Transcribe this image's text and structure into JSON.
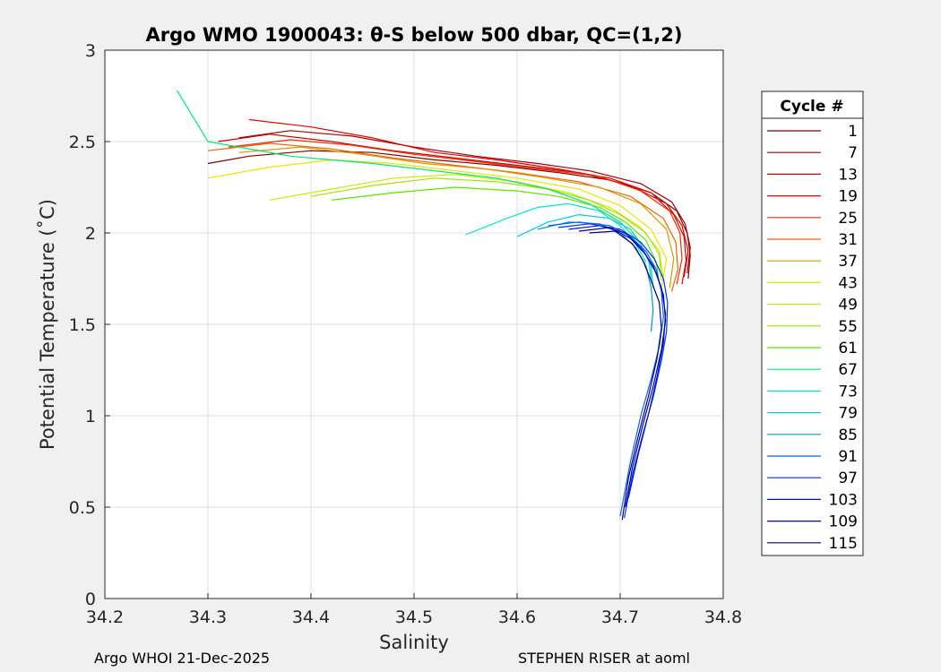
{
  "chart_data": {
    "type": "line",
    "title": "Argo WMO 1900043: θ-S below 500 dbar,  QC=(1,2)",
    "xlabel": "Salinity",
    "ylabel": "Potential Temperature (˚C)",
    "xlim": [
      34.2,
      34.8
    ],
    "ylim": [
      0,
      3
    ],
    "x_ticks": [
      34.2,
      34.3,
      34.4,
      34.5,
      34.6,
      34.7,
      34.8
    ],
    "x_tick_labels": [
      "34.2",
      "34.3",
      "34.4",
      "34.5",
      "34.6",
      "34.7",
      "34.8"
    ],
    "y_ticks": [
      0,
      0.5,
      1,
      1.5,
      2,
      2.5,
      3
    ],
    "y_tick_labels": [
      "0",
      "0.5",
      "1",
      "1.5",
      "2",
      "2.5",
      "3"
    ],
    "grid": true,
    "legend": {
      "title": "Cycle #",
      "placement": "right-outside",
      "entries": [
        {
          "label": "1",
          "color": "#800000"
        },
        {
          "label": "7",
          "color": "#a50000"
        },
        {
          "label": "13",
          "color": "#c80000"
        },
        {
          "label": "19",
          "color": "#e60000"
        },
        {
          "label": "25",
          "color": "#f03000"
        },
        {
          "label": "31",
          "color": "#f06400"
        },
        {
          "label": "37",
          "color": "#d49a00"
        },
        {
          "label": "43",
          "color": "#e6e600"
        },
        {
          "label": "49",
          "color": "#d2e600"
        },
        {
          "label": "55",
          "color": "#a0e600"
        },
        {
          "label": "61",
          "color": "#5ae600"
        },
        {
          "label": "67",
          "color": "#00e678"
        },
        {
          "label": "73",
          "color": "#00e6c8"
        },
        {
          "label": "79",
          "color": "#00c8f0"
        },
        {
          "label": "85",
          "color": "#0096c8"
        },
        {
          "label": "91",
          "color": "#0064ff"
        },
        {
          "label": "97",
          "color": "#0032e6"
        },
        {
          "label": "103",
          "color": "#0014c8"
        },
        {
          "label": "109",
          "color": "#0000aa"
        },
        {
          "label": "115",
          "color": "#000080"
        }
      ]
    },
    "series": [
      {
        "name": "1",
        "color": "#800000",
        "x": [
          34.3,
          34.34,
          34.4,
          34.46,
          34.52,
          34.58,
          34.64,
          34.69,
          34.73,
          34.755,
          34.765,
          34.768,
          34.766
        ],
        "y": [
          2.38,
          2.42,
          2.45,
          2.44,
          2.4,
          2.37,
          2.33,
          2.29,
          2.22,
          2.12,
          2.0,
          1.88,
          1.75
        ]
      },
      {
        "name": "7",
        "color": "#a50000",
        "x": [
          34.33,
          34.38,
          34.44,
          34.5,
          34.56,
          34.62,
          34.67,
          34.72,
          34.75,
          34.763,
          34.768,
          34.765
        ],
        "y": [
          2.52,
          2.56,
          2.53,
          2.47,
          2.42,
          2.38,
          2.34,
          2.27,
          2.17,
          2.05,
          1.92,
          1.78
        ]
      },
      {
        "name": "13",
        "color": "#c80000",
        "x": [
          34.31,
          34.36,
          34.42,
          34.48,
          34.54,
          34.6,
          34.66,
          34.71,
          34.745,
          34.76,
          34.766,
          34.762
        ],
        "y": [
          2.5,
          2.54,
          2.5,
          2.45,
          2.41,
          2.37,
          2.33,
          2.26,
          2.16,
          2.04,
          1.9,
          1.76
        ]
      },
      {
        "name": "19",
        "color": "#e60000",
        "x": [
          34.34,
          34.4,
          34.46,
          34.52,
          34.58,
          34.64,
          34.69,
          34.73,
          34.752,
          34.762,
          34.764,
          34.76
        ],
        "y": [
          2.62,
          2.58,
          2.52,
          2.44,
          2.4,
          2.35,
          2.3,
          2.22,
          2.1,
          1.98,
          1.85,
          1.72
        ]
      },
      {
        "name": "25",
        "color": "#f03000",
        "x": [
          34.32,
          34.38,
          34.44,
          34.5,
          34.56,
          34.62,
          34.68,
          34.72,
          34.748,
          34.758,
          34.76,
          34.755
        ],
        "y": [
          2.47,
          2.51,
          2.48,
          2.43,
          2.39,
          2.35,
          2.31,
          2.23,
          2.12,
          2.0,
          1.86,
          1.72
        ]
      },
      {
        "name": "31",
        "color": "#f06400",
        "x": [
          34.3,
          34.36,
          34.42,
          34.48,
          34.54,
          34.6,
          34.66,
          34.71,
          34.742,
          34.754,
          34.756,
          34.75
        ],
        "y": [
          2.45,
          2.49,
          2.46,
          2.41,
          2.37,
          2.33,
          2.28,
          2.2,
          2.08,
          1.95,
          1.8,
          1.68
        ]
      },
      {
        "name": "37",
        "color": "#d49a00",
        "x": [
          34.33,
          34.39,
          34.45,
          34.51,
          34.57,
          34.63,
          34.68,
          34.72,
          34.745,
          34.752,
          34.748
        ],
        "y": [
          2.44,
          2.47,
          2.43,
          2.38,
          2.35,
          2.3,
          2.25,
          2.16,
          2.02,
          1.86,
          1.7
        ]
      },
      {
        "name": "43",
        "color": "#e6e600",
        "x": [
          34.3,
          34.36,
          34.42,
          34.48,
          34.54,
          34.6,
          34.66,
          34.7,
          34.73,
          34.745,
          34.74
        ],
        "y": [
          2.3,
          2.36,
          2.4,
          2.38,
          2.34,
          2.3,
          2.24,
          2.15,
          2.02,
          1.86,
          1.7
        ]
      },
      {
        "name": "49",
        "color": "#d2e600",
        "x": [
          34.36,
          34.42,
          34.48,
          34.54,
          34.6,
          34.65,
          34.69,
          34.72,
          34.738,
          34.742
        ],
        "y": [
          2.18,
          2.24,
          2.3,
          2.32,
          2.28,
          2.22,
          2.14,
          2.03,
          1.9,
          1.74
        ]
      },
      {
        "name": "55",
        "color": "#a0e600",
        "x": [
          34.4,
          34.46,
          34.52,
          34.58,
          34.63,
          34.67,
          34.7,
          34.725,
          34.738,
          34.74
        ],
        "y": [
          2.2,
          2.26,
          2.3,
          2.28,
          2.24,
          2.18,
          2.1,
          2.0,
          1.88,
          1.74
        ]
      },
      {
        "name": "61",
        "color": "#5ae600",
        "x": [
          34.42,
          34.48,
          34.54,
          34.6,
          34.64,
          34.68,
          34.705,
          34.725,
          34.735,
          34.738
        ],
        "y": [
          2.18,
          2.22,
          2.25,
          2.23,
          2.2,
          2.14,
          2.06,
          1.96,
          1.84,
          1.72
        ]
      },
      {
        "name": "67",
        "color": "#00e678",
        "x": [
          34.27,
          34.3,
          34.38,
          34.46,
          34.52,
          34.58,
          34.63,
          34.67,
          34.7,
          34.72,
          34.73,
          34.732
        ],
        "y": [
          2.78,
          2.5,
          2.42,
          2.38,
          2.34,
          2.3,
          2.24,
          2.16,
          2.06,
          1.94,
          1.82,
          1.7
        ]
      },
      {
        "name": "73",
        "color": "#00e6c8",
        "x": [
          34.55,
          34.59,
          34.62,
          34.65,
          34.68,
          34.7,
          34.715,
          34.725
        ],
        "y": [
          1.99,
          2.08,
          2.14,
          2.16,
          2.12,
          2.04,
          1.94,
          1.84
        ]
      },
      {
        "name": "79",
        "color": "#00c8f0",
        "x": [
          34.6,
          34.63,
          34.66,
          34.69,
          34.71,
          34.72,
          34.728,
          34.73
        ],
        "y": [
          1.98,
          2.06,
          2.1,
          2.08,
          2.02,
          1.94,
          1.84,
          1.74
        ]
      },
      {
        "name": "85",
        "color": "#0096c8",
        "x": [
          34.62,
          34.65,
          34.68,
          34.7,
          34.715,
          34.725,
          34.73,
          34.732,
          34.73
        ],
        "y": [
          2.02,
          2.06,
          2.05,
          2.0,
          1.92,
          1.82,
          1.7,
          1.58,
          1.46
        ]
      },
      {
        "name": "91",
        "color": "#0064ff",
        "x": [
          34.63,
          34.66,
          34.69,
          34.71,
          34.725,
          34.735,
          34.74,
          34.742,
          34.738,
          34.73,
          34.72,
          34.71,
          34.7
        ],
        "y": [
          2.04,
          2.06,
          2.04,
          1.98,
          1.9,
          1.8,
          1.68,
          1.54,
          1.38,
          1.2,
          1.0,
          0.75,
          0.45
        ]
      },
      {
        "name": "97",
        "color": "#0032e6",
        "x": [
          34.64,
          34.67,
          34.7,
          34.72,
          34.733,
          34.742,
          34.746,
          34.745,
          34.74,
          34.732,
          34.722,
          34.712,
          34.704
        ],
        "y": [
          2.03,
          2.05,
          2.02,
          1.95,
          1.86,
          1.75,
          1.62,
          1.46,
          1.3,
          1.1,
          0.9,
          0.68,
          0.44
        ]
      },
      {
        "name": "103",
        "color": "#0014c8",
        "x": [
          34.65,
          34.68,
          34.705,
          34.72,
          34.732,
          34.74,
          34.744,
          34.742,
          34.736,
          34.728,
          34.718,
          34.708
        ],
        "y": [
          2.02,
          2.04,
          2.0,
          1.92,
          1.82,
          1.7,
          1.56,
          1.4,
          1.22,
          1.02,
          0.8,
          0.55
        ]
      },
      {
        "name": "109",
        "color": "#0000aa",
        "x": [
          34.66,
          34.69,
          34.71,
          34.725,
          34.735,
          34.742,
          34.744,
          34.74,
          34.732,
          34.722,
          34.712,
          34.705
        ],
        "y": [
          2.01,
          2.03,
          1.97,
          1.88,
          1.78,
          1.66,
          1.52,
          1.36,
          1.16,
          0.95,
          0.72,
          0.5
        ]
      },
      {
        "name": "115",
        "color": "#000080",
        "x": [
          34.67,
          34.695,
          34.712,
          34.722,
          34.73,
          34.738,
          34.74,
          34.736,
          34.728,
          34.718,
          34.708,
          34.702
        ],
        "y": [
          2.0,
          2.01,
          1.94,
          1.85,
          1.74,
          1.62,
          1.48,
          1.32,
          1.12,
          0.9,
          0.66,
          0.43
        ]
      }
    ]
  },
  "footer": {
    "left": "Argo WHOI 21-Dec-2025",
    "right": "STEPHEN RISER at aoml"
  }
}
